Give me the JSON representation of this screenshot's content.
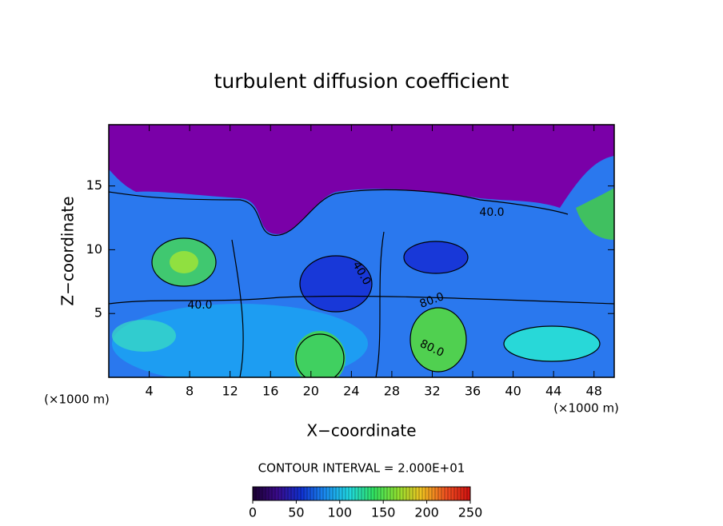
{
  "chart_data": {
    "type": "contour",
    "title": "turbulent diffusion coefficient",
    "xlabel": "X−coordinate",
    "ylabel": "Z−coordinate",
    "x_unit_label": "(×1000 m)",
    "xlim": [
      0,
      50
    ],
    "xticks": [
      4,
      8,
      12,
      16,
      20,
      24,
      28,
      32,
      36,
      40,
      44,
      48
    ],
    "ylim": [
      0,
      19.8
    ],
    "yticks": [
      5,
      10,
      15
    ],
    "contour_interval_label": "CONTOUR INTERVAL = 2.000E+01",
    "contour_labels": [
      "40.0",
      "40.0",
      "40.0",
      "80.0",
      "80.0"
    ],
    "colorbar": {
      "lim": [
        0,
        250
      ],
      "ticks": [
        0,
        50,
        100,
        150,
        200,
        250
      ],
      "colors": [
        "#1a0030",
        "#3a0a8a",
        "#1030d0",
        "#1a8cf0",
        "#20d8e0",
        "#30e060",
        "#90e030",
        "#f0c020",
        "#f05020",
        "#d01010"
      ]
    }
  }
}
